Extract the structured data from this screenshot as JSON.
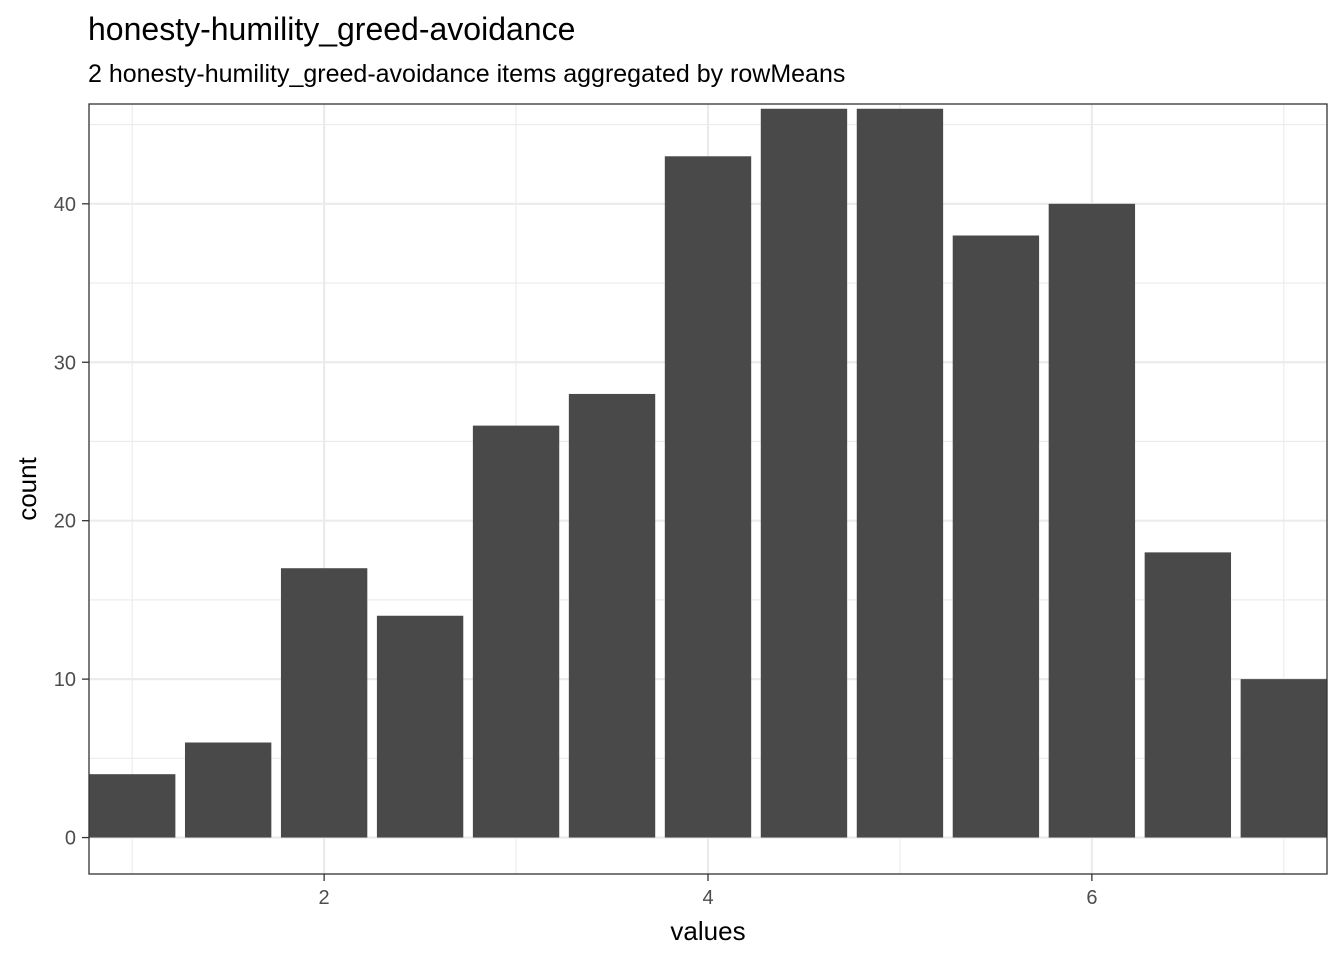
{
  "chart_data": {
    "type": "bar",
    "title": "honesty-humility_greed-avoidance",
    "subtitle": "2 honesty-humility_greed-avoidance items aggregated by rowMeans",
    "xlabel": "values",
    "ylabel": "count",
    "x": [
      1.0,
      1.5,
      2.0,
      2.5,
      3.0,
      3.5,
      4.0,
      4.5,
      5.0,
      5.5,
      6.0,
      6.5,
      7.0
    ],
    "values": [
      4,
      6,
      17,
      14,
      26,
      28,
      43,
      46,
      46,
      38,
      40,
      18,
      10
    ],
    "xlim": [
      0.775,
      7.225
    ],
    "ylim": [
      -2.3,
      46.3
    ],
    "x_ticks": [
      2,
      4,
      6
    ],
    "y_ticks": [
      0,
      10,
      20,
      30,
      40
    ],
    "grid": true,
    "bar_color": "#494949",
    "grid_color": "#ebebeb"
  }
}
